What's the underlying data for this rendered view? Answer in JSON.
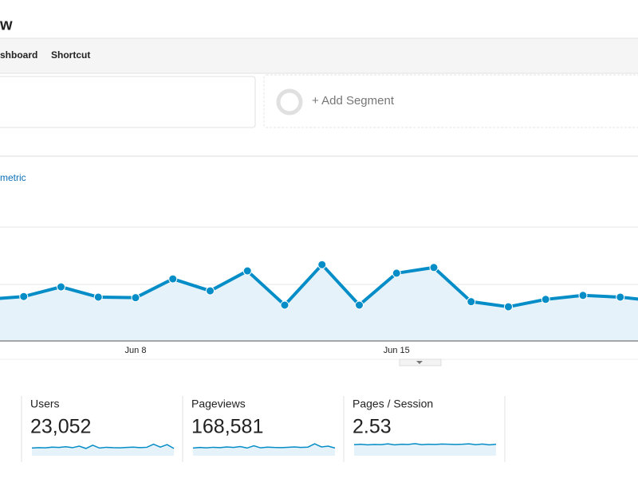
{
  "header": {
    "title": "w",
    "nav": [
      "shboard",
      "Shortcut"
    ]
  },
  "segments": {
    "add": "+ Add Segment"
  },
  "metric_picker": "metric",
  "chart_data": {
    "type": "line",
    "categories": [
      null,
      null,
      null,
      null,
      "Jun 8",
      null,
      null,
      null,
      null,
      null,
      null,
      "Jun 15",
      null,
      null,
      null,
      null,
      null,
      null,
      null
    ],
    "series": [
      {
        "name": null,
        "color": "#058dc7",
        "values": [
          73,
          78,
          95,
          77,
          76,
          109,
          88,
          123,
          63,
          134,
          63,
          119,
          129,
          69,
          60,
          73,
          80,
          77,
          70
        ]
      }
    ],
    "ylim": [
      0,
      200
    ]
  },
  "metrics": [
    {
      "label": "Users",
      "value": "23,052",
      "sparkline": {
        "ylim": [
          0,
          100
        ],
        "values": [
          40,
          42,
          41,
          45,
          43,
          47,
          42,
          50,
          38,
          55,
          40,
          44,
          42,
          41,
          43,
          45,
          42,
          44,
          60,
          45,
          58,
          38
        ]
      }
    },
    {
      "label": "Pageviews",
      "value": "168,581",
      "sparkline": {
        "ylim": [
          0,
          100
        ],
        "values": [
          40,
          43,
          41,
          44,
          42,
          46,
          43,
          48,
          40,
          52,
          41,
          45,
          43,
          42,
          44,
          46,
          43,
          45,
          62,
          46,
          50,
          40
        ]
      }
    },
    {
      "label": "Pages / Session",
      "value": "2.53",
      "sparkline": {
        "ylim": [
          0,
          100
        ],
        "values": [
          58,
          60,
          57,
          59,
          58,
          62,
          57,
          60,
          59,
          63,
          58,
          60,
          59,
          61,
          60,
          59,
          60,
          62,
          58,
          61,
          57,
          60
        ]
      }
    }
  ]
}
